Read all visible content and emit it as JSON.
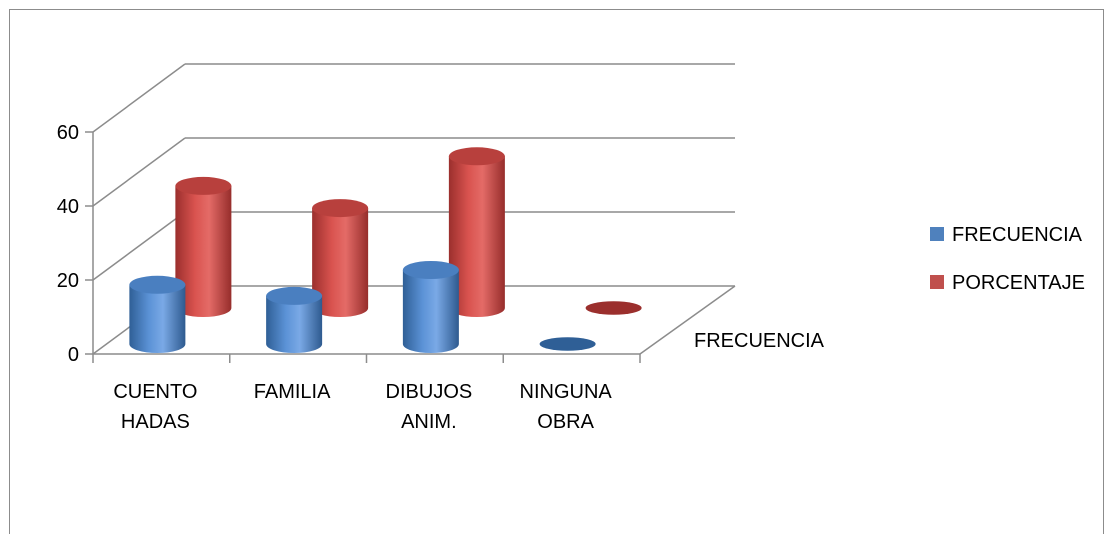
{
  "chart_data": {
    "type": "bar",
    "style": "3d-cylinder",
    "title": "",
    "xlabel": "",
    "ylabel": "",
    "ylim": [
      0,
      60
    ],
    "yticks": [
      0,
      20,
      40,
      60
    ],
    "grid": true,
    "legend_position": "right",
    "categories": [
      {
        "lines": [
          "CUENTO",
          "HADAS"
        ]
      },
      {
        "lines": [
          "FAMILIA"
        ]
      },
      {
        "lines": [
          "DIBUJOS",
          "ANIM."
        ]
      },
      {
        "lines": [
          "NINGUNA",
          "OBRA"
        ]
      }
    ],
    "series": [
      {
        "name": "FRECUENCIA",
        "color": "#4f81bd",
        "values": [
          16,
          13,
          20,
          0
        ]
      },
      {
        "name": "PORCENTAJE",
        "color": "#c0504d",
        "values": [
          33,
          27,
          41,
          0
        ]
      }
    ],
    "depth_axis_label": "FRECUENCIA"
  }
}
